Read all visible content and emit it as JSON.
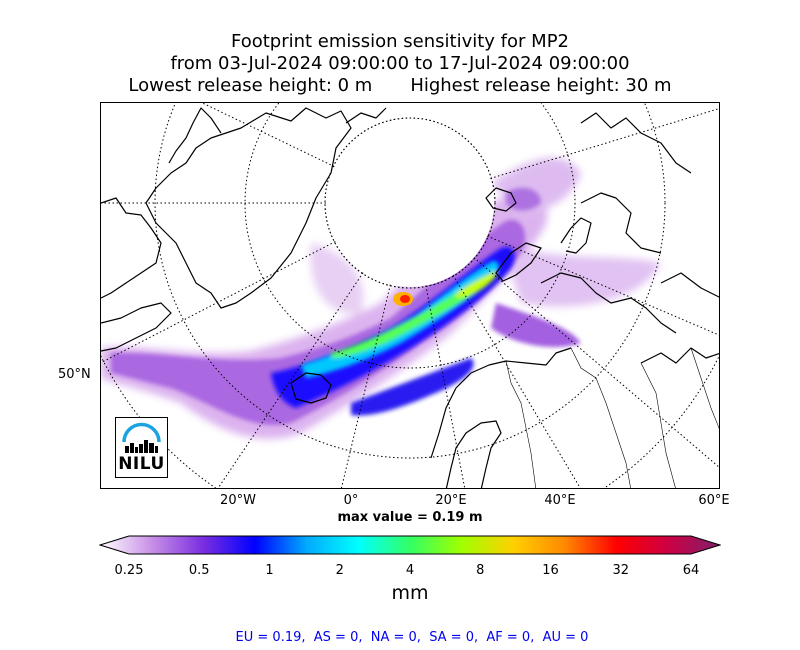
{
  "title": {
    "line1": "Footprint emission sensitivity for MP2",
    "line2": "from 03-Jul-2024 09:00:00 to 17-Jul-2024 09:00:00",
    "lowest": "Lowest release height: 0 m",
    "highest": "Highest release height: 30 m"
  },
  "map": {
    "lon_labels": [
      "20°W",
      "0°",
      "20°E",
      "40°E",
      "60°E"
    ],
    "lat_label": "50°N",
    "max_value": "max value = 0.19 m"
  },
  "colorbar": {
    "ticks": [
      "0.25",
      "0.5",
      "1",
      "2",
      "4",
      "8",
      "16",
      "32",
      "64"
    ],
    "unit": "mm",
    "colors": [
      "#ffffff",
      "#c890e6",
      "#7a2ee0",
      "#0000ff",
      "#00aaff",
      "#00ffff",
      "#33ff66",
      "#a0ff00",
      "#ffd000",
      "#ff8800",
      "#ff0000",
      "#cc0044",
      "#80206a"
    ]
  },
  "logo": {
    "text": "NILU"
  },
  "footer": "EU = 0.19,  AS = 0,  NA = 0,  SA = 0,  AF = 0,  AU = 0"
}
